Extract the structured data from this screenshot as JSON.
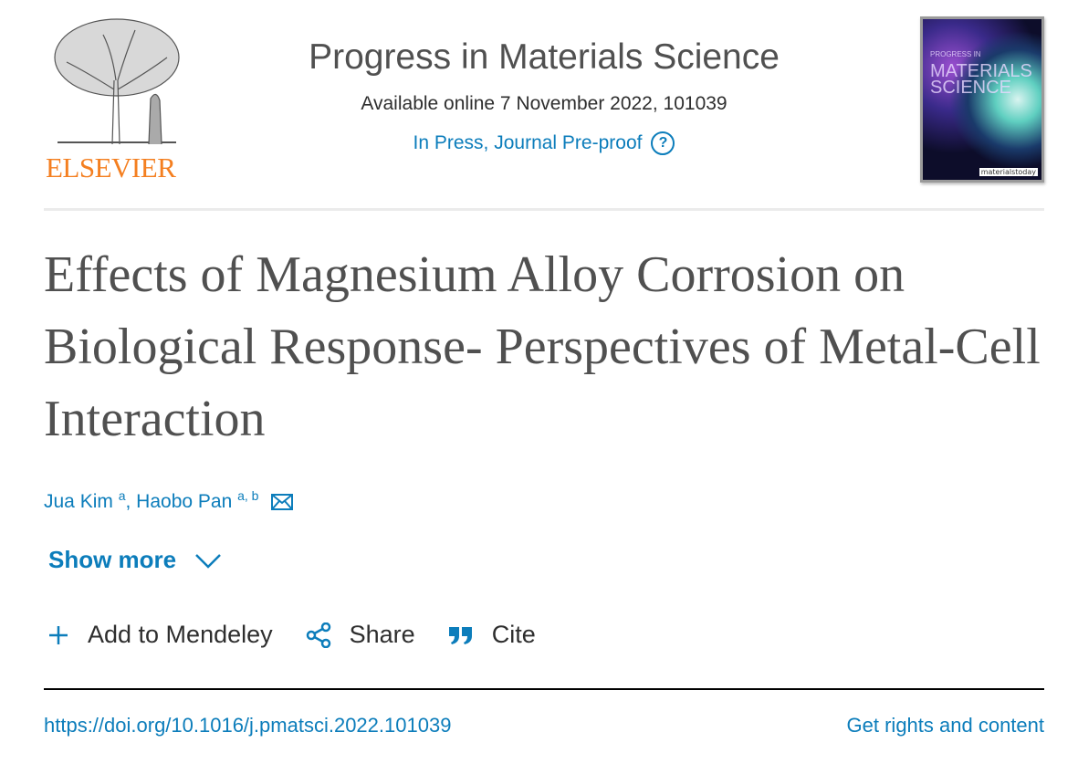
{
  "logo": {
    "wordmark": "ELSEVIER",
    "color": "#f47f20"
  },
  "journal": {
    "title": "Progress in Materials Science",
    "available": "Available online 7 November 2022, 101039",
    "status": "In Press, Journal Pre-proof",
    "help_icon": "question-circle-icon"
  },
  "cover": {
    "title_small": "PROGRESS IN",
    "title_big": "MATERIALS SCIENCE",
    "brand": "materialstoday"
  },
  "article": {
    "title": "Effects of Magnesium Alloy Corrosion on Biological Response- Perspectives of Metal-Cell Interaction",
    "authors": [
      {
        "name": "Jua Kim",
        "affil": "a"
      },
      {
        "name": "Haobo Pan",
        "affil": "a, b"
      }
    ],
    "show_more": "Show more"
  },
  "actions": {
    "mendeley": "Add to Mendeley",
    "share": "Share",
    "cite": "Cite"
  },
  "footer": {
    "doi": "https://doi.org/10.1016/j.pmatsci.2022.101039",
    "rights": "Get rights and content"
  },
  "colors": {
    "link": "#0c7dbb",
    "title": "#505050"
  }
}
